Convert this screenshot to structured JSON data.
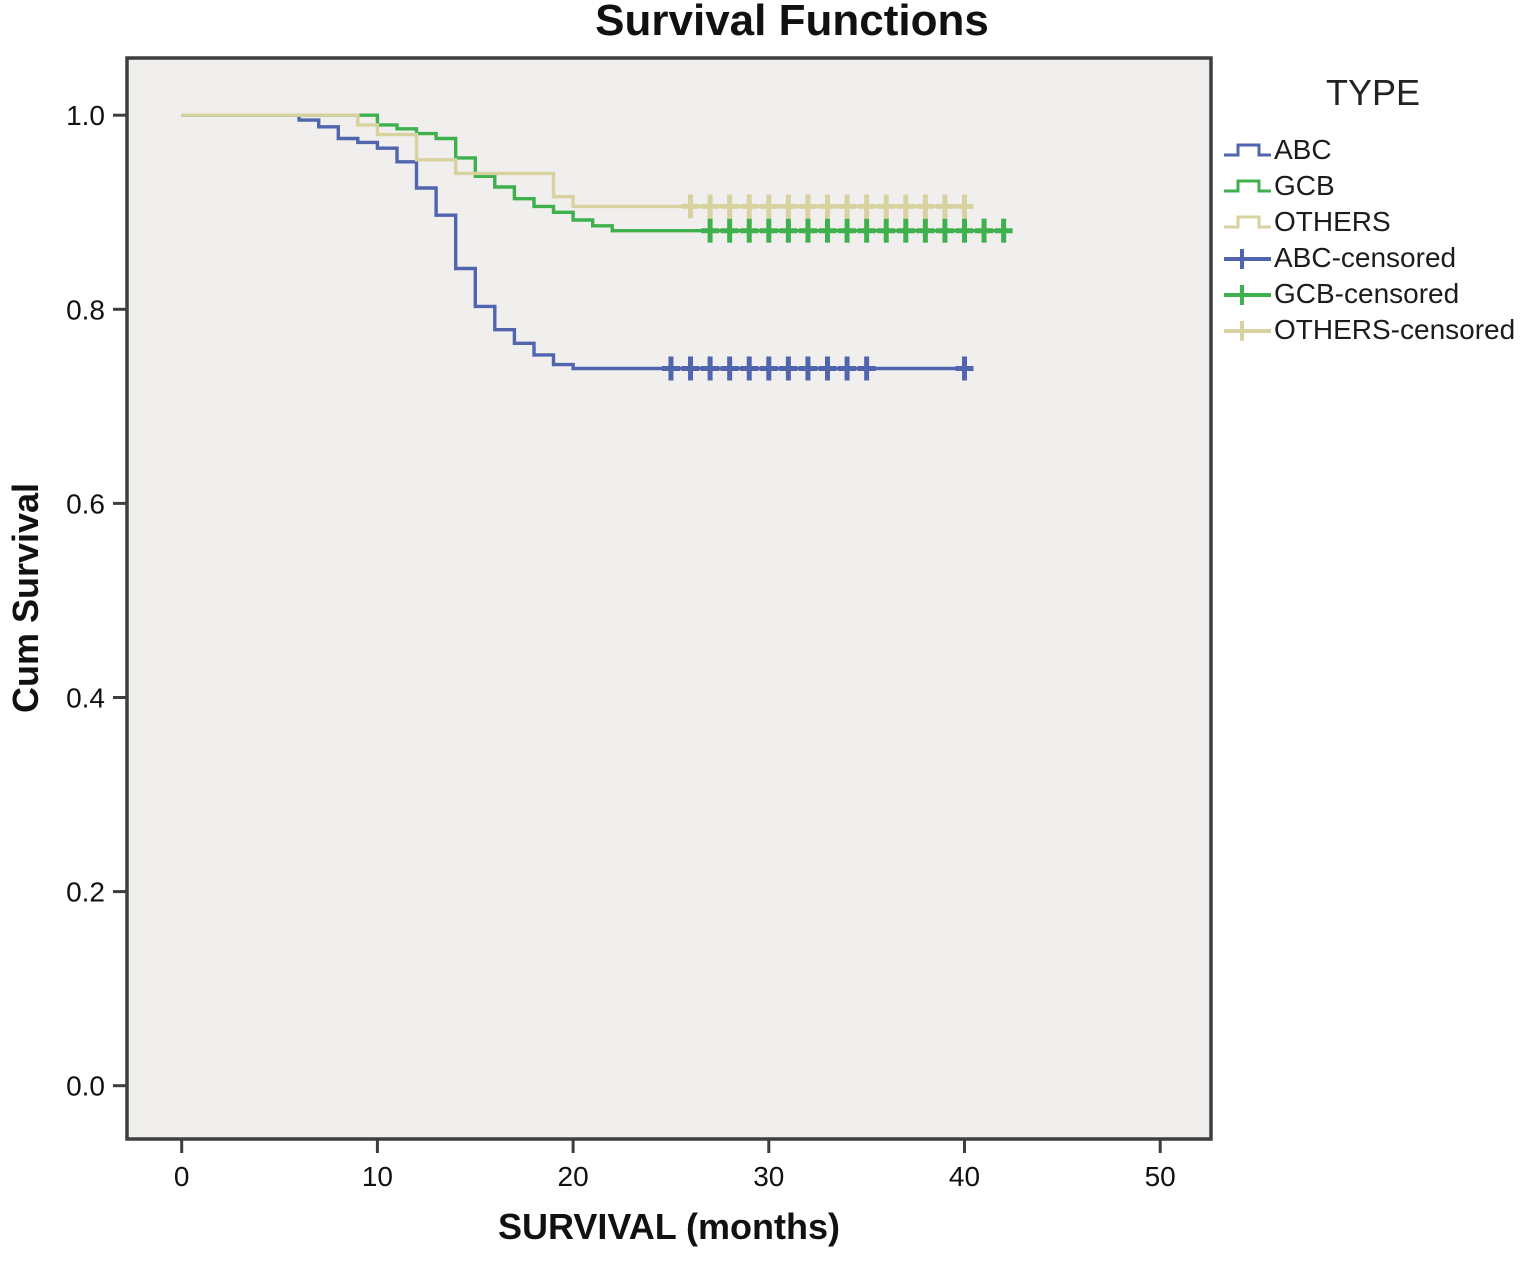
{
  "title": "Survival Functions",
  "axes": {
    "x_label": "SURVIVAL (months)",
    "y_label": "Cum Survival",
    "x_ticks": [
      {
        "v": 0,
        "label": "0"
      },
      {
        "v": 10,
        "label": "10"
      },
      {
        "v": 20,
        "label": "20"
      },
      {
        "v": 30,
        "label": "30"
      },
      {
        "v": 40,
        "label": "40"
      },
      {
        "v": 50,
        "label": "50"
      }
    ],
    "y_ticks": [
      {
        "v": 0.0,
        "label": "0.0"
      },
      {
        "v": 0.2,
        "label": "0.2"
      },
      {
        "v": 0.4,
        "label": "0.4"
      },
      {
        "v": 0.6,
        "label": "0.6"
      },
      {
        "v": 0.8,
        "label": "0.8"
      },
      {
        "v": 1.0,
        "label": "1.0"
      }
    ]
  },
  "legend": {
    "title": "TYPE",
    "entries": [
      {
        "label": "ABC",
        "glyph": "step-line-icon",
        "color": "#5065ae"
      },
      {
        "label": "GCB",
        "glyph": "step-line-icon",
        "color": "#3fb04e"
      },
      {
        "label": "OTHERS",
        "glyph": "step-line-icon",
        "color": "#d8d2a0"
      },
      {
        "label": "ABC-censored",
        "glyph": "censor-plus-icon",
        "color": "#5065ae"
      },
      {
        "label": "GCB-censored",
        "glyph": "censor-plus-icon",
        "color": "#3fb04e"
      },
      {
        "label": "OTHERS-censored",
        "glyph": "censor-plus-icon",
        "color": "#d8d2a0"
      }
    ]
  },
  "chart_data": {
    "type": "line",
    "subtype": "kaplan-meier-step",
    "title": "Survival Functions",
    "xlabel": "SURVIVAL (months)",
    "ylabel": "Cum Survival",
    "xlim": [
      -2.8,
      52.6
    ],
    "ylim": [
      -0.047,
      1.059
    ],
    "grid": false,
    "legend_position": "right",
    "plot_bg": "#f0efed",
    "frame_color": "#3e3e3e",
    "series": [
      {
        "name": "ABC",
        "color": "#5065ae",
        "start": [
          0,
          1.0
        ],
        "steps": [
          [
            6,
            0.995
          ],
          [
            7,
            0.988
          ],
          [
            8,
            0.976
          ],
          [
            9,
            0.972
          ],
          [
            10,
            0.966
          ],
          [
            11,
            0.952
          ],
          [
            12,
            0.925
          ],
          [
            13,
            0.897
          ],
          [
            14,
            0.842
          ],
          [
            15,
            0.803
          ],
          [
            16,
            0.779
          ],
          [
            17,
            0.765
          ],
          [
            18,
            0.753
          ],
          [
            19,
            0.743
          ],
          [
            20,
            0.739
          ]
        ],
        "final_value": 0.739,
        "end_x": 40.3,
        "censored_x": [
          25,
          26,
          27,
          28,
          29,
          30,
          31,
          32,
          33,
          34,
          35,
          40
        ]
      },
      {
        "name": "GCB",
        "color": "#3fb04e",
        "start": [
          0,
          1.0
        ],
        "steps": [
          [
            10,
            0.99
          ],
          [
            11,
            0.986
          ],
          [
            12,
            0.981
          ],
          [
            13,
            0.976
          ],
          [
            14,
            0.956
          ],
          [
            15,
            0.937
          ],
          [
            16,
            0.926
          ],
          [
            17,
            0.914
          ],
          [
            18,
            0.906
          ],
          [
            19,
            0.9
          ],
          [
            20,
            0.892
          ],
          [
            21,
            0.886
          ],
          [
            22,
            0.881
          ]
        ],
        "final_value": 0.881,
        "end_x": 42.3,
        "censored_x": [
          27,
          28,
          29,
          30,
          31,
          32,
          33,
          34,
          35,
          36,
          37,
          38,
          39,
          40,
          41,
          42
        ]
      },
      {
        "name": "OTHERS",
        "color": "#d8d2a0",
        "start": [
          0,
          1.0
        ],
        "steps": [
          [
            9,
            0.99
          ],
          [
            10,
            0.98
          ],
          [
            12,
            0.954
          ],
          [
            14,
            0.94
          ],
          [
            19,
            0.916
          ],
          [
            20,
            0.906
          ]
        ],
        "final_value": 0.906,
        "end_x": 40.3,
        "censored_x": [
          26,
          27,
          28,
          29,
          30,
          31,
          32,
          33,
          34,
          35,
          36,
          37,
          38,
          39,
          40
        ]
      }
    ],
    "draw_order": [
      "ABC",
      "GCB",
      "OTHERS"
    ]
  }
}
